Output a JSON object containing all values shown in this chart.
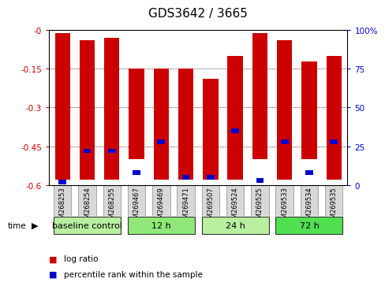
{
  "title": "GDS3642 / 3665",
  "samples": [
    "GSM268253",
    "GSM268254",
    "GSM268255",
    "GSM269467",
    "GSM269469",
    "GSM269471",
    "GSM269507",
    "GSM269524",
    "GSM269525",
    "GSM269533",
    "GSM269534",
    "GSM269535"
  ],
  "log_ratio_top": [
    -0.01,
    -0.04,
    -0.03,
    -0.15,
    -0.15,
    -0.15,
    -0.19,
    -0.1,
    -0.01,
    -0.04,
    -0.12,
    -0.1
  ],
  "log_ratio_bottom": [
    -0.58,
    -0.58,
    -0.58,
    -0.5,
    -0.58,
    -0.58,
    -0.58,
    -0.58,
    -0.5,
    -0.58,
    -0.5,
    -0.58
  ],
  "percentile_rank": [
    2,
    22,
    22,
    8,
    28,
    5,
    5,
    35,
    3,
    28,
    8,
    28
  ],
  "groups": [
    {
      "label": "baseline control",
      "span": [
        0,
        3
      ],
      "color": "#b8f0a0"
    },
    {
      "label": "12 h",
      "span": [
        3,
        6
      ],
      "color": "#90e878"
    },
    {
      "label": "24 h",
      "span": [
        6,
        9
      ],
      "color": "#b8f0a0"
    },
    {
      "label": "72 h",
      "span": [
        9,
        12
      ],
      "color": "#50e050"
    }
  ],
  "ylim_left": [
    -0.6,
    0.0
  ],
  "ylim_right": [
    0,
    100
  ],
  "yticks_left": [
    0.0,
    -0.15,
    -0.3,
    -0.45,
    -0.6
  ],
  "ytick_labels_left": [
    "-0",
    "-0.15",
    "-0.3",
    "-0.45",
    "-0.6"
  ],
  "yticks_right": [
    0,
    25,
    50,
    75,
    100
  ],
  "ytick_labels_right": [
    "0",
    "25",
    "50",
    "75",
    "100%"
  ],
  "bar_color": "#cc0000",
  "marker_color": "#0000cc",
  "bg_color": "#ffffff",
  "title_fontsize": 11,
  "tick_fontsize": 7.5,
  "sample_fontsize": 6,
  "group_label_fontsize": 8,
  "legend_fontsize": 7.5
}
